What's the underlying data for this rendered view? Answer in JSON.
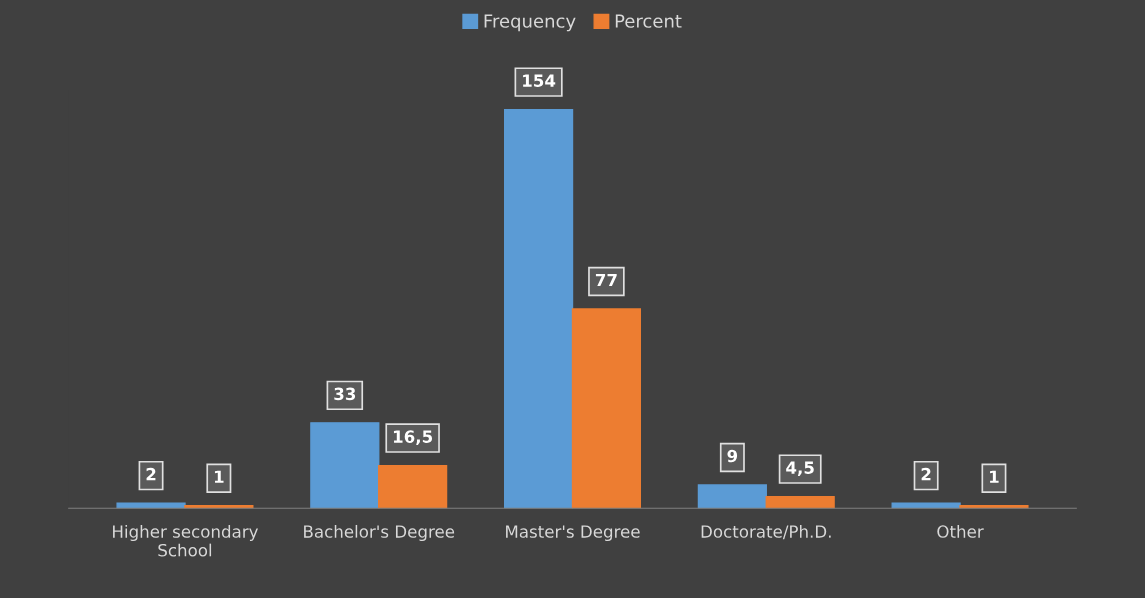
{
  "chart_data": {
    "type": "bar",
    "categories": [
      "Higher secondary\nSchool",
      "Bachelor's Degree",
      "Master's Degree",
      "Doctorate/Ph.D.",
      "Other"
    ],
    "series": [
      {
        "name": "Frequency",
        "color": "#5b9bd5",
        "values": [
          2,
          33,
          154,
          9,
          2
        ],
        "value_labels": [
          "2",
          "33",
          "154",
          "9",
          "2"
        ]
      },
      {
        "name": "Percent",
        "color": "#ed7d31",
        "values": [
          1,
          16.5,
          77,
          4.5,
          1
        ],
        "value_labels": [
          "1",
          "16,5",
          "77",
          "4,5",
          "1"
        ]
      }
    ],
    "legend": "top"
  }
}
